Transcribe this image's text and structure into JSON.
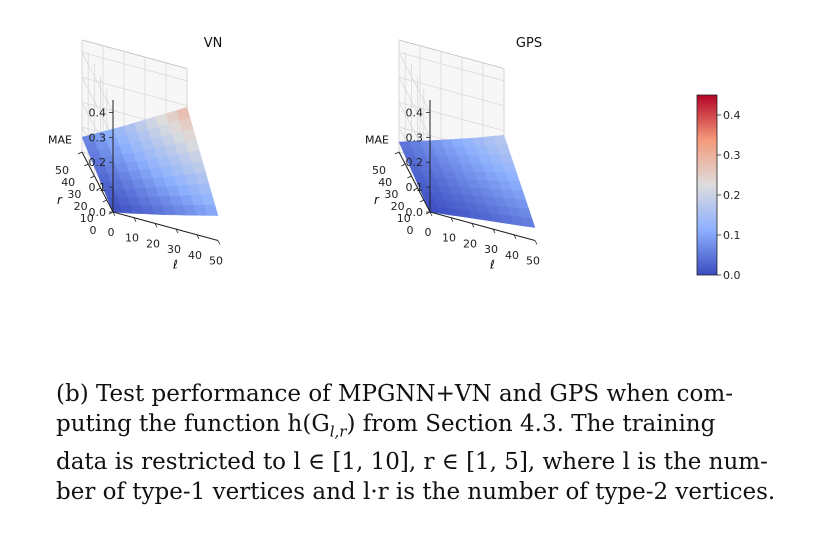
{
  "chart_data": [
    {
      "type": "surface3d",
      "title": "VN",
      "xlabel": "ℓ",
      "ylabel": "r",
      "zlabel": "MAE",
      "x": [
        0,
        5,
        10,
        15,
        20,
        25,
        30,
        35,
        40,
        45,
        50
      ],
      "y": [
        0,
        5,
        10,
        15,
        20,
        25,
        30,
        35,
        40,
        45,
        50
      ],
      "x_ticks": [
        "0",
        "10",
        "20",
        "30",
        "40",
        "50"
      ],
      "y_ticks": [
        "0",
        "10",
        "20",
        "30",
        "40",
        "50"
      ],
      "z_ticks": [
        "0.0",
        "0.1",
        "0.2",
        "0.3",
        "0.4"
      ],
      "zlim": [
        0,
        0.45
      ],
      "z": [
        [
          0.0,
          0.008,
          0.017,
          0.027,
          0.036,
          0.046,
          0.057,
          0.067,
          0.078,
          0.089,
          0.1
        ],
        [
          0.006,
          0.015,
          0.026,
          0.036,
          0.047,
          0.059,
          0.07,
          0.082,
          0.094,
          0.107,
          0.119
        ],
        [
          0.012,
          0.023,
          0.034,
          0.046,
          0.059,
          0.071,
          0.084,
          0.097,
          0.111,
          0.125,
          0.139
        ],
        [
          0.018,
          0.03,
          0.043,
          0.056,
          0.07,
          0.084,
          0.098,
          0.113,
          0.128,
          0.143,
          0.158
        ],
        [
          0.024,
          0.038,
          0.052,
          0.066,
          0.081,
          0.096,
          0.112,
          0.128,
          0.145,
          0.161,
          0.178
        ],
        [
          0.03,
          0.045,
          0.06,
          0.076,
          0.093,
          0.109,
          0.126,
          0.144,
          0.161,
          0.179,
          0.197
        ],
        [
          0.036,
          0.053,
          0.069,
          0.087,
          0.104,
          0.122,
          0.141,
          0.159,
          0.178,
          0.197,
          0.217
        ],
        [
          0.042,
          0.06,
          0.078,
          0.097,
          0.116,
          0.135,
          0.155,
          0.175,
          0.195,
          0.216,
          0.236
        ],
        [
          0.048,
          0.068,
          0.087,
          0.107,
          0.127,
          0.148,
          0.169,
          0.19,
          0.212,
          0.234,
          0.256
        ],
        [
          0.054,
          0.075,
          0.096,
          0.117,
          0.139,
          0.161,
          0.183,
          0.206,
          0.229,
          0.252,
          0.275
        ],
        [
          0.06,
          0.082,
          0.105,
          0.127,
          0.15,
          0.174,
          0.198,
          0.222,
          0.246,
          0.27,
          0.295
        ]
      ]
    },
    {
      "type": "surface3d",
      "title": "GPS",
      "xlabel": "ℓ",
      "ylabel": "r",
      "zlabel": "MAE",
      "x": [
        0,
        5,
        10,
        15,
        20,
        25,
        30,
        35,
        40,
        45,
        50
      ],
      "y": [
        0,
        5,
        10,
        15,
        20,
        25,
        30,
        35,
        40,
        45,
        50
      ],
      "x_ticks": [
        "0",
        "10",
        "20",
        "30",
        "40",
        "50"
      ],
      "y_ticks": [
        "0",
        "10",
        "20",
        "30",
        "40",
        "50"
      ],
      "z_ticks": [
        "0.0",
        "0.1",
        "0.2",
        "0.3",
        "0.4"
      ],
      "zlim": [
        0,
        0.45
      ],
      "z": [
        [
          0.0,
          0.005,
          0.01,
          0.016,
          0.021,
          0.026,
          0.031,
          0.036,
          0.041,
          0.046,
          0.052
        ],
        [
          0.004,
          0.01,
          0.016,
          0.022,
          0.028,
          0.034,
          0.04,
          0.046,
          0.052,
          0.058,
          0.065
        ],
        [
          0.008,
          0.015,
          0.022,
          0.028,
          0.035,
          0.042,
          0.049,
          0.056,
          0.063,
          0.071,
          0.078
        ],
        [
          0.012,
          0.02,
          0.027,
          0.035,
          0.043,
          0.05,
          0.058,
          0.066,
          0.074,
          0.083,
          0.091
        ],
        [
          0.016,
          0.025,
          0.033,
          0.041,
          0.05,
          0.058,
          0.067,
          0.076,
          0.085,
          0.095,
          0.104
        ],
        [
          0.02,
          0.029,
          0.039,
          0.048,
          0.057,
          0.067,
          0.076,
          0.086,
          0.096,
          0.107,
          0.117
        ],
        [
          0.024,
          0.034,
          0.044,
          0.054,
          0.064,
          0.075,
          0.085,
          0.096,
          0.107,
          0.119,
          0.13
        ],
        [
          0.028,
          0.039,
          0.05,
          0.061,
          0.072,
          0.083,
          0.094,
          0.106,
          0.118,
          0.131,
          0.143
        ],
        [
          0.032,
          0.044,
          0.056,
          0.067,
          0.079,
          0.091,
          0.104,
          0.116,
          0.129,
          0.143,
          0.156
        ],
        [
          0.036,
          0.049,
          0.061,
          0.074,
          0.086,
          0.099,
          0.113,
          0.126,
          0.14,
          0.155,
          0.169
        ],
        [
          0.04,
          0.054,
          0.067,
          0.08,
          0.094,
          0.108,
          0.122,
          0.136,
          0.151,
          0.167,
          0.182
        ]
      ]
    }
  ],
  "colorbar": {
    "colormap": "coolwarm",
    "range": [
      0,
      0.45
    ],
    "ticks": [
      "0.0",
      "0.1",
      "0.2",
      "0.3",
      "0.4"
    ],
    "colors": {
      "low": "#3b4cc0",
      "mid": "#dddddd",
      "high": "#b40426"
    }
  },
  "caption": {
    "lines": [
      "(b) Test performance of MPGNN+VN and GPS when com-",
      "puting the function h(G",
      "l,r",
      ") from Section 4.3. The training",
      "data is restricted to l ∈ [1, 10], r ∈ [1, 5], where l is the num-",
      "ber of type-1 vertices and l·r is the number of type-2 vertices."
    ]
  }
}
